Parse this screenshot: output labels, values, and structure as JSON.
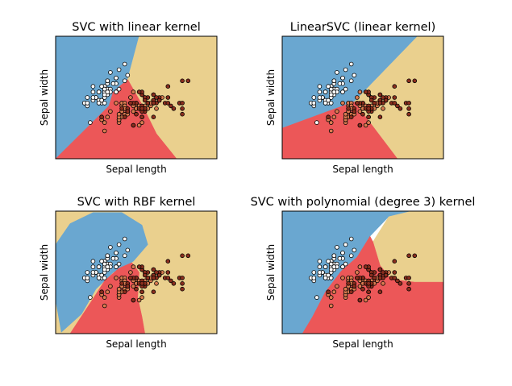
{
  "figure": {
    "background": "#ffffff"
  },
  "colors": {
    "blue": "#6aa7d0",
    "red": "#ec5758",
    "tan": "#ead08e",
    "edge": "#000000"
  },
  "point_colors": {
    "0": "#ffffff",
    "1": "#d97b50",
    "2": "#8a2e1e"
  },
  "chart_data": [
    {
      "type": "scatter",
      "title": "SVC with linear kernel",
      "xlabel": "Sepal length",
      "ylabel": "Sepal width",
      "xlim": [
        3.3,
        8.9
      ],
      "ylim": [
        1.0,
        5.4
      ],
      "ticks": false,
      "grid": false,
      "background": "decision regions",
      "regions": [
        {
          "class": 0,
          "color": "#6aa7d0",
          "points": [
            [
              3.3,
              1.0
            ],
            [
              3.3,
              5.4
            ],
            [
              6.2,
              5.4
            ],
            [
              5.8,
              3.85
            ],
            [
              5.3,
              3.4
            ],
            [
              5.15,
              2.9
            ]
          ]
        },
        {
          "class": 2,
          "color": "#ead08e",
          "points": [
            [
              6.2,
              5.4
            ],
            [
              8.9,
              5.4
            ],
            [
              8.9,
              1.0
            ],
            [
              7.5,
              1.0
            ],
            [
              6.8,
              1.9
            ],
            [
              6.3,
              2.95
            ],
            [
              5.8,
              3.85
            ]
          ]
        },
        {
          "class": 1,
          "color": "#ec5758",
          "points": [
            [
              3.3,
              1.0
            ],
            [
              7.5,
              1.0
            ],
            [
              6.8,
              1.9
            ],
            [
              6.3,
              2.95
            ],
            [
              5.8,
              3.85
            ],
            [
              5.3,
              3.4
            ],
            [
              5.15,
              2.9
            ]
          ]
        }
      ]
    },
    {
      "type": "scatter",
      "title": "LinearSVC (linear kernel)",
      "xlabel": "Sepal length",
      "ylabel": "Sepal width",
      "xlim": [
        3.3,
        8.9
      ],
      "ylim": [
        1.0,
        5.4
      ],
      "ticks": false,
      "grid": false,
      "background": "decision regions",
      "regions": [
        {
          "class": 0,
          "color": "#6aa7d0",
          "points": [
            [
              3.3,
              5.4
            ],
            [
              8.0,
              5.4
            ],
            [
              5.8,
              3.05
            ],
            [
              3.3,
              2.1
            ]
          ]
        },
        {
          "class": 2,
          "color": "#ead08e",
          "points": [
            [
              8.0,
              5.4
            ],
            [
              8.9,
              5.4
            ],
            [
              8.9,
              1.0
            ],
            [
              7.3,
              1.0
            ],
            [
              5.8,
              3.05
            ]
          ]
        },
        {
          "class": 1,
          "color": "#ec5758",
          "points": [
            [
              3.3,
              2.1
            ],
            [
              5.8,
              3.05
            ],
            [
              7.3,
              1.0
            ],
            [
              3.3,
              1.0
            ]
          ]
        }
      ]
    },
    {
      "type": "scatter",
      "title": "SVC with RBF kernel",
      "xlabel": "Sepal length",
      "ylabel": "Sepal width",
      "xlim": [
        3.3,
        8.9
      ],
      "ylim": [
        1.0,
        5.4
      ],
      "ticks": false,
      "grid": false,
      "background": "decision regions",
      "regions": [
        {
          "class": 2,
          "color": "#ead08e",
          "points": [
            [
              3.3,
              1.0
            ],
            [
              3.3,
              5.4
            ],
            [
              8.9,
              5.4
            ],
            [
              8.9,
              1.0
            ]
          ]
        },
        {
          "class": 0,
          "color": "#6aa7d0",
          "points": [
            [
              3.5,
              1.05
            ],
            [
              3.3,
              2.2
            ],
            [
              3.3,
              4.2
            ],
            [
              3.8,
              4.95
            ],
            [
              4.6,
              5.35
            ],
            [
              5.6,
              5.35
            ],
            [
              6.3,
              4.9
            ],
            [
              6.5,
              4.2
            ],
            [
              6.0,
              3.6
            ],
            [
              5.3,
              3.2
            ],
            [
              4.7,
              2.6
            ],
            [
              4.2,
              1.7
            ]
          ]
        },
        {
          "class": 1,
          "color": "#ec5758",
          "points": [
            [
              3.8,
              1.0
            ],
            [
              4.5,
              2.1
            ],
            [
              5.0,
              2.9
            ],
            [
              5.5,
              3.35
            ],
            [
              5.95,
              3.55
            ],
            [
              6.2,
              3.2
            ],
            [
              6.15,
              2.3
            ],
            [
              6.3,
              1.6
            ],
            [
              6.4,
              1.0
            ]
          ]
        }
      ]
    },
    {
      "type": "scatter",
      "title": "SVC with polynomial (degree 3) kernel",
      "xlabel": "Sepal length",
      "ylabel": "Sepal width",
      "xlim": [
        3.3,
        8.9
      ],
      "ylim": [
        1.0,
        5.4
      ],
      "ticks": false,
      "grid": false,
      "background": "decision regions",
      "regions": [
        {
          "class": 0,
          "color": "#6aa7d0",
          "points": [
            [
              3.3,
              1.0
            ],
            [
              3.3,
              5.4
            ],
            [
              7.8,
              5.4
            ],
            [
              7.0,
              5.2
            ],
            [
              6.35,
              4.5
            ],
            [
              5.9,
              3.75
            ],
            [
              5.35,
              3.25
            ],
            [
              4.8,
              2.5
            ],
            [
              4.35,
              1.6
            ],
            [
              4.0,
              1.0
            ]
          ]
        },
        {
          "class": 2,
          "color": "#ead08e",
          "points": [
            [
              7.8,
              5.4
            ],
            [
              8.9,
              5.4
            ],
            [
              8.9,
              2.85
            ],
            [
              7.9,
              2.85
            ],
            [
              7.1,
              2.95
            ],
            [
              6.7,
              3.45
            ],
            [
              6.45,
              4.3
            ],
            [
              7.0,
              5.2
            ]
          ]
        },
        {
          "class": 1,
          "color": "#ec5758",
          "points": [
            [
              4.0,
              1.0
            ],
            [
              4.35,
              1.6
            ],
            [
              4.8,
              2.5
            ],
            [
              5.35,
              3.25
            ],
            [
              5.9,
              3.75
            ],
            [
              6.35,
              4.5
            ],
            [
              6.45,
              4.3
            ],
            [
              6.7,
              3.45
            ],
            [
              7.1,
              2.95
            ],
            [
              7.9,
              2.85
            ],
            [
              8.9,
              2.85
            ],
            [
              8.9,
              1.0
            ]
          ]
        }
      ]
    }
  ],
  "scatter": {
    "x": [
      5.1,
      4.9,
      4.7,
      4.6,
      5.0,
      5.4,
      4.6,
      5.0,
      4.4,
      4.9,
      5.4,
      4.8,
      4.8,
      4.3,
      5.8,
      5.7,
      5.4,
      5.1,
      5.7,
      5.1,
      5.4,
      5.1,
      4.6,
      5.1,
      4.8,
      5.0,
      5.0,
      5.2,
      5.2,
      4.7,
      4.8,
      5.4,
      5.2,
      5.5,
      4.9,
      5.0,
      5.5,
      4.9,
      4.4,
      5.1,
      5.0,
      4.5,
      4.4,
      5.0,
      5.1,
      4.8,
      5.1,
      4.6,
      5.3,
      5.0,
      7.0,
      6.4,
      6.9,
      5.5,
      6.5,
      5.7,
      6.3,
      4.9,
      6.6,
      5.2,
      5.0,
      5.9,
      6.0,
      6.1,
      5.6,
      6.7,
      5.6,
      5.8,
      6.2,
      5.6,
      5.9,
      6.1,
      6.3,
      6.1,
      6.4,
      6.6,
      6.8,
      6.7,
      6.0,
      5.7,
      5.5,
      5.5,
      5.8,
      6.0,
      5.4,
      6.0,
      6.7,
      6.3,
      5.6,
      5.5,
      5.5,
      6.1,
      5.8,
      5.0,
      5.6,
      5.7,
      5.7,
      6.2,
      5.1,
      5.7,
      6.3,
      5.8,
      7.1,
      6.3,
      6.5,
      7.6,
      4.9,
      7.3,
      6.7,
      7.2,
      6.5,
      6.4,
      6.8,
      5.7,
      5.8,
      6.4,
      6.5,
      7.7,
      7.7,
      6.0,
      6.9,
      5.6,
      7.7,
      6.3,
      6.7,
      7.2,
      6.2,
      6.1,
      6.4,
      7.2,
      7.4,
      7.9,
      6.4,
      6.3,
      6.1,
      7.7,
      6.3,
      6.4,
      6.0,
      6.9,
      6.7,
      6.9,
      5.8,
      6.8,
      6.7,
      6.7,
      6.3,
      6.5,
      6.2,
      5.9
    ],
    "y": [
      3.5,
      3.0,
      3.2,
      3.1,
      3.6,
      3.9,
      3.4,
      3.4,
      2.9,
      3.1,
      3.7,
      3.4,
      3.0,
      3.0,
      4.0,
      4.4,
      3.9,
      3.5,
      3.8,
      3.8,
      3.4,
      3.7,
      3.6,
      3.3,
      3.4,
      3.0,
      3.4,
      3.5,
      3.4,
      3.2,
      3.1,
      3.4,
      4.1,
      4.2,
      3.1,
      3.2,
      3.5,
      3.6,
      3.0,
      3.4,
      3.5,
      2.3,
      3.2,
      3.5,
      3.8,
      3.0,
      3.8,
      3.2,
      3.7,
      3.3,
      3.2,
      3.2,
      3.1,
      2.3,
      2.8,
      2.8,
      3.3,
      2.4,
      2.9,
      2.7,
      2.0,
      3.0,
      2.2,
      2.9,
      2.9,
      3.1,
      3.0,
      2.7,
      2.2,
      2.5,
      3.2,
      2.8,
      2.5,
      2.8,
      2.9,
      3.0,
      2.8,
      3.0,
      2.9,
      2.6,
      2.4,
      2.4,
      2.7,
      2.7,
      3.0,
      3.4,
      3.1,
      2.3,
      3.0,
      2.5,
      2.6,
      3.0,
      2.6,
      2.3,
      2.7,
      3.0,
      2.9,
      2.9,
      2.5,
      2.8,
      3.3,
      2.7,
      3.0,
      2.9,
      3.0,
      3.0,
      2.5,
      2.9,
      2.5,
      3.6,
      3.2,
      2.7,
      3.0,
      2.5,
      2.8,
      3.2,
      3.0,
      3.8,
      2.6,
      2.2,
      3.2,
      2.8,
      2.8,
      2.7,
      3.3,
      3.2,
      2.8,
      3.0,
      2.8,
      3.0,
      2.8,
      3.8,
      2.8,
      2.8,
      2.6,
      3.0,
      3.4,
      3.1,
      3.0,
      3.1,
      3.1,
      3.1,
      2.7,
      3.2,
      3.3,
      3.0,
      2.5,
      3.0,
      3.4,
      3.0
    ],
    "classes": [
      0,
      0,
      0,
      0,
      0,
      0,
      0,
      0,
      0,
      0,
      0,
      0,
      0,
      0,
      0,
      0,
      0,
      0,
      0,
      0,
      0,
      0,
      0,
      0,
      0,
      0,
      0,
      0,
      0,
      0,
      0,
      0,
      0,
      0,
      0,
      0,
      0,
      0,
      0,
      0,
      0,
      0,
      0,
      0,
      0,
      0,
      0,
      0,
      0,
      0,
      1,
      1,
      1,
      1,
      1,
      1,
      1,
      1,
      1,
      1,
      1,
      1,
      1,
      1,
      1,
      1,
      1,
      1,
      1,
      1,
      1,
      1,
      1,
      1,
      1,
      1,
      1,
      1,
      1,
      1,
      1,
      1,
      1,
      1,
      1,
      1,
      1,
      1,
      1,
      1,
      1,
      1,
      1,
      1,
      1,
      1,
      1,
      1,
      1,
      1,
      2,
      2,
      2,
      2,
      2,
      2,
      2,
      2,
      2,
      2,
      2,
      2,
      2,
      2,
      2,
      2,
      2,
      2,
      2,
      2,
      2,
      2,
      2,
      2,
      2,
      2,
      2,
      2,
      2,
      2,
      2,
      2,
      2,
      2,
      2,
      2,
      2,
      2,
      2,
      2,
      2,
      2,
      2,
      2,
      2,
      2,
      2,
      2,
      2,
      2
    ]
  }
}
